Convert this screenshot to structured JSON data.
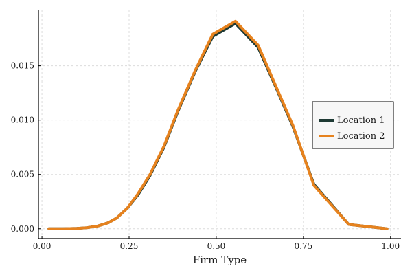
{
  "chart_data": {
    "type": "line",
    "title": "",
    "xlabel": "Firm Type",
    "ylabel": "",
    "xlim": [
      -0.01,
      1.03
    ],
    "ylim": [
      -0.0009,
      0.0201
    ],
    "x_ticks": [
      0.0,
      0.25,
      0.5,
      0.75,
      1.0
    ],
    "x_tick_labels": [
      "0.00",
      "0.25",
      "0.50",
      "0.75",
      "1.00"
    ],
    "y_ticks": [
      0.0,
      0.005,
      0.01,
      0.015
    ],
    "y_tick_labels": [
      "0.000",
      "0.005",
      "0.010",
      "0.015"
    ],
    "grid": true,
    "legend_position": "right",
    "series": [
      {
        "name": "Location 1",
        "color": "#1e3a34",
        "x": [
          0.02,
          0.06,
          0.1,
          0.13,
          0.16,
          0.19,
          0.215,
          0.245,
          0.275,
          0.31,
          0.35,
          0.39,
          0.44,
          0.49,
          0.555,
          0.62,
          0.67,
          0.72,
          0.78,
          0.88,
          0.99
        ],
        "y": [
          0.0,
          0.0,
          3e-05,
          0.0001,
          0.00025,
          0.00055,
          0.001,
          0.0019,
          0.0031,
          0.0049,
          0.0075,
          0.0108,
          0.0145,
          0.0177,
          0.0189,
          0.0167,
          0.0131,
          0.0094,
          0.0041,
          0.0004,
          0.0
        ]
      },
      {
        "name": "Location 2",
        "color": "#e6821e",
        "x": [
          0.02,
          0.06,
          0.1,
          0.13,
          0.16,
          0.19,
          0.215,
          0.245,
          0.275,
          0.31,
          0.35,
          0.39,
          0.44,
          0.49,
          0.555,
          0.62,
          0.67,
          0.72,
          0.78,
          0.88,
          0.99
        ],
        "y": [
          0.0,
          0.0,
          3e-05,
          0.0001,
          0.00025,
          0.00055,
          0.001,
          0.0019,
          0.0032,
          0.005,
          0.0076,
          0.0109,
          0.0146,
          0.0179,
          0.0191,
          0.0169,
          0.0132,
          0.0095,
          0.004,
          0.0004,
          0.0
        ]
      }
    ]
  }
}
